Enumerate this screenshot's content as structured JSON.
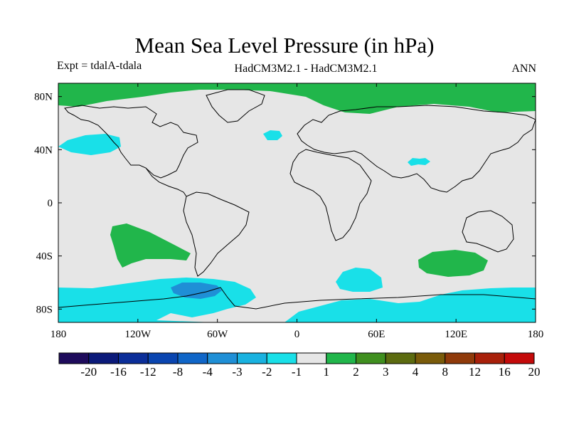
{
  "title": "Mean Sea Level Pressure (in hPa)",
  "experiment_label": "Expt = tdalA-tdala",
  "models_label": "HadCM3M2.1 - HadCM3M2.1",
  "season_label": "ANN",
  "map": {
    "projection": "cylindrical-equidistant",
    "lon_range": [
      -180,
      180
    ],
    "lat_range": [
      -90,
      90
    ],
    "lon_ticks": [
      {
        "value": -180,
        "label": "180"
      },
      {
        "value": -120,
        "label": "120W"
      },
      {
        "value": -60,
        "label": "60W"
      },
      {
        "value": 0,
        "label": "0"
      },
      {
        "value": 60,
        "label": "60E"
      },
      {
        "value": 120,
        "label": "120E"
      },
      {
        "value": 180,
        "label": "180"
      }
    ],
    "lat_ticks": [
      {
        "value": 80,
        "label": "80N"
      },
      {
        "value": 40,
        "label": "40N"
      },
      {
        "value": 0,
        "label": "0"
      },
      {
        "value": -40,
        "label": "40S"
      },
      {
        "value": -80,
        "label": "80S"
      }
    ],
    "background_color": "#e6e6e6",
    "coastline_color": "#000000"
  },
  "colorbar": {
    "colors": [
      "#1e0b5c",
      "#0b1a7a",
      "#0b2e99",
      "#0a45b0",
      "#1066c8",
      "#1f8fd6",
      "#19b2e0",
      "#19e0e8",
      "#e6e6e6",
      "#21b64b",
      "#3f8f1f",
      "#5c6b10",
      "#7a5b0a",
      "#8f3a0a",
      "#a8200a",
      "#c40a0a"
    ],
    "labels": [
      "-20",
      "-16",
      "-12",
      "-8",
      "-4",
      "-3",
      "-2",
      "-1",
      "1",
      "2",
      "3",
      "4",
      "8",
      "12",
      "16",
      "20"
    ]
  }
}
